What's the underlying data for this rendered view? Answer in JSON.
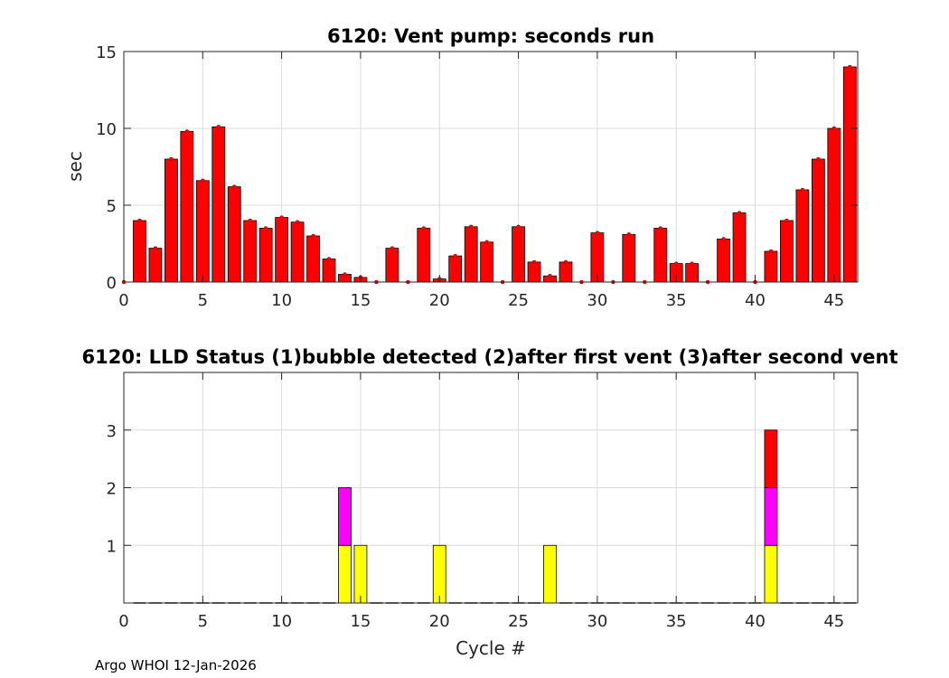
{
  "footer": "Argo WHOI 12-Jan-2026",
  "colors": {
    "bar": "#ff0000",
    "yellow": "#ffff00",
    "magenta": "#ff00ff",
    "red": "#ff0000",
    "edge": "#000000",
    "grid": "#dcdcdc"
  },
  "chart_data": [
    {
      "type": "bar",
      "title": "6120: Vent pump: seconds run",
      "xlabel": "",
      "ylabel": "sec",
      "xlim": [
        0,
        46.5
      ],
      "ylim": [
        0,
        15
      ],
      "xticks": [
        0,
        5,
        10,
        15,
        20,
        25,
        30,
        35,
        40,
        45
      ],
      "yticks": [
        0,
        5,
        10,
        15
      ],
      "grid": true,
      "x": [
        0,
        1,
        2,
        3,
        4,
        5,
        6,
        7,
        8,
        9,
        10,
        11,
        12,
        13,
        14,
        15,
        16,
        17,
        18,
        19,
        20,
        21,
        22,
        23,
        24,
        25,
        26,
        27,
        28,
        29,
        30,
        31,
        32,
        33,
        34,
        35,
        36,
        37,
        38,
        39,
        40,
        41,
        42,
        43,
        44,
        45,
        46
      ],
      "values": [
        0,
        4,
        2.2,
        8,
        9.8,
        6.6,
        10.1,
        6.2,
        4,
        3.5,
        4.2,
        3.9,
        3,
        1.5,
        0.5,
        0.3,
        0,
        2.2,
        0,
        3.5,
        0.2,
        1.7,
        3.6,
        2.6,
        0,
        3.6,
        1.3,
        0.4,
        1.3,
        0,
        3.2,
        0,
        3.1,
        0,
        3.5,
        1.2,
        1.2,
        0,
        2.8,
        4.5,
        0,
        2,
        4,
        6,
        8,
        10,
        14
      ]
    },
    {
      "type": "bar",
      "title": "6120: LLD Status   (1)bubble detected   (2)after first vent  (3)after second vent",
      "xlabel": "Cycle #",
      "ylabel": "",
      "xlim": [
        0,
        46.5
      ],
      "ylim": [
        0,
        4
      ],
      "xticks": [
        0,
        5,
        10,
        15,
        20,
        25,
        30,
        35,
        40,
        45
      ],
      "yticks": [
        1,
        2,
        3
      ],
      "grid": true,
      "stacked": true,
      "x": [
        1,
        2,
        3,
        4,
        5,
        6,
        7,
        8,
        9,
        10,
        11,
        12,
        13,
        14,
        15,
        16,
        17,
        18,
        19,
        20,
        21,
        22,
        23,
        24,
        25,
        26,
        27,
        28,
        29,
        30,
        31,
        32,
        33,
        34,
        35,
        36,
        37,
        38,
        39,
        40,
        41,
        42,
        43,
        44,
        45,
        46
      ],
      "series": [
        {
          "values": [
            0,
            0,
            0,
            0,
            0,
            0,
            0,
            0,
            0,
            0,
            0,
            0,
            0,
            1,
            1,
            0,
            0,
            0,
            0,
            1,
            0,
            0,
            0,
            0,
            0,
            0,
            1,
            0,
            0,
            0,
            0,
            0,
            0,
            0,
            0,
            0,
            0,
            0,
            0,
            0,
            1,
            0,
            0,
            0,
            0,
            0
          ]
        },
        {
          "values": [
            0,
            0,
            0,
            0,
            0,
            0,
            0,
            0,
            0,
            0,
            0,
            0,
            0,
            1,
            0,
            0,
            0,
            0,
            0,
            0,
            0,
            0,
            0,
            0,
            0,
            0,
            0,
            0,
            0,
            0,
            0,
            0,
            0,
            0,
            0,
            0,
            0,
            0,
            0,
            0,
            1,
            0,
            0,
            0,
            0,
            0
          ]
        },
        {
          "values": [
            0,
            0,
            0,
            0,
            0,
            0,
            0,
            0,
            0,
            0,
            0,
            0,
            0,
            0,
            0,
            0,
            0,
            0,
            0,
            0,
            0,
            0,
            0,
            0,
            0,
            0,
            0,
            0,
            0,
            0,
            0,
            0,
            0,
            0,
            0,
            0,
            0,
            0,
            0,
            0,
            1,
            0,
            0,
            0,
            0,
            0
          ]
        }
      ]
    }
  ]
}
